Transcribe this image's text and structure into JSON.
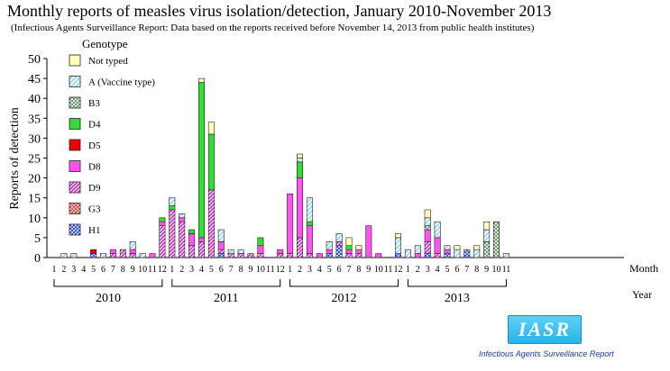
{
  "title": "Monthly reports of measles virus isolation/detection, January 2010-November 2013",
  "subtitle": "(Infectious Agents Surveillance Report: Data based on the reports received before November 14, 2013 from public health institutes)",
  "logo": {
    "text": "IASR",
    "caption": "Infectious Agents Surveillance Report"
  },
  "chart_data": {
    "type": "bar",
    "stacked": true,
    "ylabel": "Reports of detection",
    "xlabel": "Month",
    "year_label": "Year",
    "legend_title": "Genotype",
    "ylim": [
      0,
      50
    ],
    "yticks": [
      0,
      5,
      10,
      15,
      20,
      25,
      30,
      35,
      40,
      45,
      50
    ],
    "years": [
      "2010",
      "2011",
      "2012",
      "2013"
    ],
    "categories": [
      "1",
      "2",
      "3",
      "4",
      "5",
      "6",
      "7",
      "8",
      "9",
      "10",
      "11",
      "12",
      "1",
      "2",
      "3",
      "4",
      "5",
      "6",
      "7",
      "8",
      "9",
      "10",
      "11",
      "12",
      "1",
      "2",
      "3",
      "4",
      "5",
      "6",
      "7",
      "8",
      "9",
      "10",
      "11",
      "12",
      "1",
      "2",
      "3",
      "4",
      "5",
      "6",
      "7",
      "8",
      "9",
      "10",
      "11"
    ],
    "series": [
      {
        "name": "H1",
        "color": "#2244ee",
        "pattern": "cross",
        "values": [
          0,
          0,
          0,
          0,
          1,
          0,
          0,
          0,
          0,
          0,
          0,
          0,
          0,
          0,
          0,
          0,
          0,
          1,
          0,
          0,
          0,
          0,
          0,
          0,
          0,
          0,
          0,
          0,
          1,
          3,
          0,
          0,
          0,
          0,
          0,
          1,
          0,
          0,
          1,
          0,
          1,
          0,
          2,
          0,
          0,
          0,
          0
        ]
      },
      {
        "name": "G3",
        "color": "#ee3333",
        "pattern": "cross",
        "values": [
          0,
          0,
          0,
          0,
          0,
          0,
          0,
          0,
          0,
          0,
          0,
          0,
          0,
          0,
          0,
          0,
          0,
          0,
          0,
          0,
          0,
          0,
          0,
          0,
          0,
          0,
          0,
          0,
          0,
          0,
          0,
          0,
          0,
          0,
          0,
          0,
          0,
          0,
          0,
          0,
          0,
          0,
          0,
          0,
          0,
          0,
          0
        ]
      },
      {
        "name": "D9",
        "color": "#cc22cc",
        "pattern": "diag",
        "values": [
          0,
          0,
          0,
          0,
          0,
          0,
          1,
          2,
          1,
          0,
          0,
          8,
          12,
          9,
          3,
          4,
          17,
          1,
          1,
          1,
          1,
          1,
          0,
          1,
          1,
          5,
          1,
          0,
          0,
          1,
          1,
          1,
          0,
          0,
          0,
          0,
          0,
          0,
          3,
          1,
          0,
          0,
          0,
          0,
          0,
          0,
          0
        ]
      },
      {
        "name": "D8",
        "color": "#ff55ee",
        "pattern": "solid",
        "values": [
          0,
          0,
          0,
          0,
          0,
          0,
          1,
          0,
          1,
          0,
          1,
          1,
          0,
          1,
          3,
          1,
          0,
          2,
          0,
          0,
          0,
          2,
          0,
          1,
          15,
          15,
          7,
          1,
          1,
          0,
          1,
          1,
          8,
          1,
          0,
          0,
          0,
          1,
          3,
          4,
          1,
          0,
          0,
          0,
          0,
          0,
          0
        ]
      },
      {
        "name": "D5",
        "color": "#ee0000",
        "pattern": "solid",
        "values": [
          0,
          0,
          0,
          0,
          1,
          0,
          0,
          0,
          0,
          0,
          0,
          0,
          0,
          0,
          0,
          0,
          0,
          0,
          0,
          0,
          0,
          0,
          0,
          0,
          0,
          0,
          0,
          0,
          0,
          0,
          0,
          0,
          0,
          0,
          0,
          0,
          0,
          0,
          0,
          0,
          0,
          0,
          0,
          0,
          0,
          0,
          0
        ]
      },
      {
        "name": "D4",
        "color": "#33dd33",
        "pattern": "solid",
        "values": [
          0,
          0,
          0,
          0,
          0,
          0,
          0,
          0,
          0,
          0,
          0,
          1,
          1,
          0,
          1,
          39,
          14,
          0,
          0,
          0,
          0,
          2,
          0,
          0,
          0,
          4,
          1,
          0,
          0,
          0,
          1,
          0,
          0,
          0,
          0,
          0,
          0,
          0,
          0,
          0,
          0,
          0,
          0,
          0,
          0,
          0,
          0
        ]
      },
      {
        "name": "B3",
        "color": "#88bb88",
        "pattern": "check",
        "values": [
          0,
          0,
          0,
          0,
          0,
          0,
          0,
          0,
          0,
          0,
          0,
          0,
          0,
          0,
          0,
          0,
          0,
          0,
          0,
          0,
          0,
          0,
          0,
          0,
          0,
          0,
          0,
          0,
          0,
          0,
          0,
          0,
          0,
          0,
          0,
          0,
          0,
          0,
          1,
          0,
          0,
          0,
          0,
          0,
          4,
          9,
          0
        ]
      },
      {
        "name": "A (Vaccine type)",
        "color": "#aaddee",
        "pattern": "diagThin",
        "values": [
          0,
          1,
          1,
          0,
          0,
          1,
          0,
          0,
          2,
          1,
          0,
          0,
          2,
          1,
          0,
          0,
          0,
          3,
          1,
          1,
          0,
          0,
          0,
          0,
          0,
          1,
          6,
          0,
          2,
          2,
          0,
          0,
          0,
          0,
          0,
          4,
          2,
          2,
          2,
          4,
          1,
          2,
          0,
          2,
          3,
          0,
          1
        ]
      },
      {
        "name": "Not typed",
        "color": "#ffffbb",
        "pattern": "solid",
        "values": [
          0,
          0,
          0,
          0,
          0,
          0,
          0,
          0,
          0,
          0,
          0,
          0,
          0,
          0,
          0,
          1,
          3,
          0,
          0,
          0,
          0,
          0,
          0,
          0,
          0,
          1,
          0,
          0,
          0,
          0,
          2,
          1,
          0,
          0,
          0,
          1,
          0,
          0,
          2,
          0,
          0,
          1,
          0,
          1,
          2,
          0,
          0
        ]
      }
    ]
  }
}
